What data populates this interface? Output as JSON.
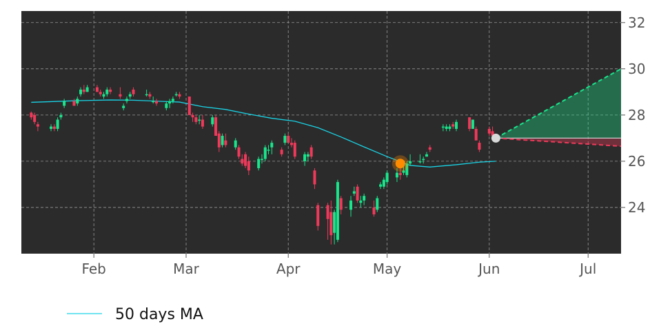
{
  "chart_data": {
    "type": "candlestick",
    "title": "",
    "xlabel": "",
    "ylabel": "",
    "ylim": [
      22.0,
      32.5
    ],
    "grid": true,
    "x_tick_labels": [
      "Feb",
      "Mar",
      "Apr",
      "May",
      "Jun",
      "Jul"
    ],
    "y_tick_labels": [
      "24",
      "26",
      "28",
      "30",
      "32"
    ],
    "legend": {
      "position": "bottom-left",
      "entries": [
        "50 days MA"
      ]
    },
    "colors": {
      "background": "#2b2b2b",
      "up": "#19e68c",
      "down": "#f0395a",
      "ma": "#19d4e6",
      "grid": "#9a9a9a",
      "marker": "#ff8c00",
      "projection_up": "#19e68c",
      "projection_down": "#f0395a",
      "current_point": "#d9d9d9"
    },
    "ohlc": [
      {
        "date": "Jan 13",
        "o": 28.1,
        "h": 28.15,
        "l": 27.8,
        "c": 27.9
      },
      {
        "date": "Jan 14",
        "o": 28.0,
        "h": 28.1,
        "l": 27.6,
        "c": 27.7
      },
      {
        "date": "Jan 15",
        "o": 27.6,
        "h": 27.7,
        "l": 27.3,
        "c": 27.5
      },
      {
        "date": "Jan 19",
        "o": 27.4,
        "h": 27.6,
        "l": 27.3,
        "c": 27.5
      },
      {
        "date": "Jan 20",
        "o": 27.5,
        "h": 27.6,
        "l": 27.3,
        "c": 27.4
      },
      {
        "date": "Jan 21",
        "o": 27.4,
        "h": 27.9,
        "l": 27.3,
        "c": 27.8
      },
      {
        "date": "Jan 22",
        "o": 27.9,
        "h": 28.1,
        "l": 27.8,
        "c": 28.0
      },
      {
        "date": "Jan 23",
        "o": 28.4,
        "h": 28.7,
        "l": 28.3,
        "c": 28.6
      },
      {
        "date": "Jan 26",
        "o": 28.6,
        "h": 28.7,
        "l": 28.4,
        "c": 28.4
      },
      {
        "date": "Jan 27",
        "o": 28.5,
        "h": 28.8,
        "l": 28.4,
        "c": 28.7
      },
      {
        "date": "Jan 28",
        "o": 28.9,
        "h": 29.2,
        "l": 28.8,
        "c": 29.1
      },
      {
        "date": "Jan 29",
        "o": 29.1,
        "h": 29.3,
        "l": 28.9,
        "c": 29.0
      },
      {
        "date": "Jan 30",
        "o": 29.0,
        "h": 29.3,
        "l": 29.0,
        "c": 29.2
      },
      {
        "date": "Feb 2",
        "o": 29.2,
        "h": 29.3,
        "l": 29.0,
        "c": 29.0
      },
      {
        "date": "Feb 3",
        "o": 29.0,
        "h": 29.1,
        "l": 28.8,
        "c": 28.9
      },
      {
        "date": "Feb 4",
        "o": 28.8,
        "h": 29.0,
        "l": 28.7,
        "c": 28.9
      },
      {
        "date": "Feb 5",
        "o": 28.9,
        "h": 29.2,
        "l": 28.8,
        "c": 29.1
      },
      {
        "date": "Feb 6",
        "o": 29.1,
        "h": 29.2,
        "l": 28.9,
        "c": 29.0
      },
      {
        "date": "Feb 9",
        "o": 28.9,
        "h": 29.2,
        "l": 28.7,
        "c": 28.8
      },
      {
        "date": "Feb 10",
        "o": 28.3,
        "h": 28.5,
        "l": 28.2,
        "c": 28.4
      },
      {
        "date": "Feb 11",
        "o": 28.6,
        "h": 28.8,
        "l": 28.5,
        "c": 28.7
      },
      {
        "date": "Feb 12",
        "o": 28.8,
        "h": 29.0,
        "l": 28.7,
        "c": 28.9
      },
      {
        "date": "Feb 13",
        "o": 29.1,
        "h": 29.2,
        "l": 28.8,
        "c": 28.9
      },
      {
        "date": "Feb 17",
        "o": 28.9,
        "h": 29.1,
        "l": 28.8,
        "c": 28.9
      },
      {
        "date": "Feb 18",
        "o": 28.9,
        "h": 29.0,
        "l": 28.7,
        "c": 28.8
      },
      {
        "date": "Feb 19",
        "o": 28.6,
        "h": 28.8,
        "l": 28.5,
        "c": 28.6
      },
      {
        "date": "Feb 20",
        "o": 28.6,
        "h": 28.7,
        "l": 28.4,
        "c": 28.5
      },
      {
        "date": "Feb 23",
        "o": 28.3,
        "h": 28.6,
        "l": 28.2,
        "c": 28.5
      },
      {
        "date": "Feb 24",
        "o": 28.5,
        "h": 28.7,
        "l": 28.3,
        "c": 28.6
      },
      {
        "date": "Feb 25",
        "o": 28.6,
        "h": 28.8,
        "l": 28.5,
        "c": 28.7
      },
      {
        "date": "Feb 26",
        "o": 28.9,
        "h": 29.0,
        "l": 28.8,
        "c": 28.9
      },
      {
        "date": "Feb 27",
        "o": 28.9,
        "h": 29.0,
        "l": 28.7,
        "c": 28.8
      },
      {
        "date": "Mar 2",
        "o": 28.8,
        "h": 28.8,
        "l": 28.0,
        "c": 28.0
      },
      {
        "date": "Mar 3",
        "o": 28.0,
        "h": 28.1,
        "l": 27.7,
        "c": 27.9
      },
      {
        "date": "Mar 4",
        "o": 27.9,
        "h": 28.0,
        "l": 27.6,
        "c": 27.7
      },
      {
        "date": "Mar 5",
        "o": 27.8,
        "h": 28.0,
        "l": 27.6,
        "c": 27.8
      },
      {
        "date": "Mar 6",
        "o": 27.8,
        "h": 28.0,
        "l": 27.4,
        "c": 27.5
      },
      {
        "date": "Mar 9",
        "o": 27.6,
        "h": 28.0,
        "l": 27.5,
        "c": 27.9
      },
      {
        "date": "Mar 10",
        "o": 27.9,
        "h": 28.0,
        "l": 27.1,
        "c": 27.1
      },
      {
        "date": "Mar 11",
        "o": 27.2,
        "h": 27.3,
        "l": 26.4,
        "c": 26.6
      },
      {
        "date": "Mar 12",
        "o": 26.7,
        "h": 27.2,
        "l": 26.6,
        "c": 27.1
      },
      {
        "date": "Mar 13",
        "o": 26.9,
        "h": 27.2,
        "l": 26.6,
        "c": 26.7
      },
      {
        "date": "Mar 16",
        "o": 26.6,
        "h": 27.0,
        "l": 26.5,
        "c": 26.9
      },
      {
        "date": "Mar 17",
        "o": 26.6,
        "h": 26.7,
        "l": 26.1,
        "c": 26.2
      },
      {
        "date": "Mar 18",
        "o": 26.1,
        "h": 26.3,
        "l": 25.8,
        "c": 25.9
      },
      {
        "date": "Mar 19",
        "o": 26.3,
        "h": 26.4,
        "l": 25.7,
        "c": 25.8
      },
      {
        "date": "Mar 20",
        "o": 26.0,
        "h": 26.2,
        "l": 25.4,
        "c": 25.6
      },
      {
        "date": "Mar 23",
        "o": 25.7,
        "h": 26.2,
        "l": 25.6,
        "c": 26.1
      },
      {
        "date": "Mar 24",
        "o": 26.1,
        "h": 26.3,
        "l": 25.9,
        "c": 26.1
      },
      {
        "date": "Mar 25",
        "o": 26.1,
        "h": 26.7,
        "l": 26.0,
        "c": 26.6
      },
      {
        "date": "Mar 26",
        "o": 26.5,
        "h": 26.7,
        "l": 26.3,
        "c": 26.5
      },
      {
        "date": "Mar 27",
        "o": 26.6,
        "h": 26.9,
        "l": 26.3,
        "c": 26.8
      },
      {
        "date": "Mar 30",
        "o": 26.5,
        "h": 26.6,
        "l": 26.2,
        "c": 26.3
      },
      {
        "date": "Mar 31",
        "o": 26.8,
        "h": 27.2,
        "l": 26.7,
        "c": 27.1
      },
      {
        "date": "Apr 1",
        "o": 27.1,
        "h": 27.2,
        "l": 26.8,
        "c": 26.8
      },
      {
        "date": "Apr 2",
        "o": 26.8,
        "h": 27.0,
        "l": 26.6,
        "c": 26.7
      },
      {
        "date": "Apr 3",
        "o": 26.8,
        "h": 26.9,
        "l": 26.1,
        "c": 26.2
      },
      {
        "date": "Apr 6",
        "o": 26.0,
        "h": 26.4,
        "l": 25.8,
        "c": 26.3
      },
      {
        "date": "Apr 7",
        "o": 26.2,
        "h": 26.4,
        "l": 26.0,
        "c": 26.3
      },
      {
        "date": "Apr 8",
        "o": 26.6,
        "h": 26.7,
        "l": 26.1,
        "c": 26.2
      },
      {
        "date": "Apr 9",
        "o": 25.6,
        "h": 25.7,
        "l": 24.8,
        "c": 25.0
      },
      {
        "date": "Apr 10",
        "o": 24.1,
        "h": 24.2,
        "l": 23.0,
        "c": 23.2
      },
      {
        "date": "Apr 13",
        "o": 24.1,
        "h": 24.2,
        "l": 22.6,
        "c": 23.5
      },
      {
        "date": "Apr 14",
        "o": 23.8,
        "h": 24.3,
        "l": 22.4,
        "c": 22.8
      },
      {
        "date": "Apr 15",
        "o": 22.9,
        "h": 23.9,
        "l": 22.4,
        "c": 23.8
      },
      {
        "date": "Apr 16",
        "o": 22.6,
        "h": 25.2,
        "l": 22.5,
        "c": 25.1
      },
      {
        "date": "Apr 17",
        "o": 24.4,
        "h": 24.5,
        "l": 23.7,
        "c": 23.9
      },
      {
        "date": "Apr 20",
        "o": 23.9,
        "h": 24.5,
        "l": 23.6,
        "c": 24.3
      },
      {
        "date": "Apr 21",
        "o": 24.6,
        "h": 24.9,
        "l": 24.5,
        "c": 24.7
      },
      {
        "date": "Apr 22",
        "o": 24.9,
        "h": 25.0,
        "l": 24.2,
        "c": 24.3
      },
      {
        "date": "Apr 23",
        "o": 24.2,
        "h": 24.5,
        "l": 24.0,
        "c": 24.3
      },
      {
        "date": "Apr 24",
        "o": 24.3,
        "h": 24.6,
        "l": 24.1,
        "c": 24.5
      },
      {
        "date": "Apr 27",
        "o": 24.0,
        "h": 24.3,
        "l": 23.6,
        "c": 23.7
      },
      {
        "date": "Apr 28",
        "o": 23.9,
        "h": 24.5,
        "l": 23.8,
        "c": 24.4
      },
      {
        "date": "Apr 29",
        "o": 24.9,
        "h": 25.1,
        "l": 24.8,
        "c": 25.0
      },
      {
        "date": "Apr 30",
        "o": 24.9,
        "h": 25.3,
        "l": 24.8,
        "c": 25.2
      },
      {
        "date": "May 1",
        "o": 25.1,
        "h": 25.6,
        "l": 25.0,
        "c": 25.5
      },
      {
        "date": "May 4",
        "o": 25.3,
        "h": 25.7,
        "l": 25.1,
        "c": 25.5
      },
      {
        "date": "May 5",
        "o": 25.5,
        "h": 25.7,
        "l": 25.2,
        "c": 25.4
      },
      {
        "date": "May 6",
        "o": 25.5,
        "h": 25.9,
        "l": 25.4,
        "c": 25.6
      },
      {
        "date": "May 7",
        "o": 25.4,
        "h": 26.0,
        "l": 25.3,
        "c": 25.9
      },
      {
        "date": "May 8",
        "o": 25.9,
        "h": 26.3,
        "l": 25.8,
        "c": 26.0
      },
      {
        "date": "May 11",
        "o": 26.0,
        "h": 26.3,
        "l": 25.9,
        "c": 26.0
      },
      {
        "date": "May 12",
        "o": 26.1,
        "h": 26.2,
        "l": 25.9,
        "c": 26.1
      },
      {
        "date": "May 13",
        "o": 26.2,
        "h": 26.4,
        "l": 26.2,
        "c": 26.3
      },
      {
        "date": "May 14",
        "o": 26.6,
        "h": 26.7,
        "l": 26.4,
        "c": 26.5
      },
      {
        "date": "May 18",
        "o": 27.5,
        "h": 27.6,
        "l": 27.3,
        "c": 27.5
      },
      {
        "date": "May 19",
        "o": 27.4,
        "h": 27.6,
        "l": 27.3,
        "c": 27.5
      },
      {
        "date": "May 20",
        "o": 27.4,
        "h": 27.6,
        "l": 27.3,
        "c": 27.5
      },
      {
        "date": "May 21",
        "o": 27.6,
        "h": 27.7,
        "l": 27.4,
        "c": 27.5
      },
      {
        "date": "May 22",
        "o": 27.4,
        "h": 27.8,
        "l": 27.3,
        "c": 27.7
      },
      {
        "date": "May 26",
        "o": 27.9,
        "h": 27.9,
        "l": 27.3,
        "c": 27.4
      },
      {
        "date": "May 27",
        "o": 27.4,
        "h": 27.8,
        "l": 27.4,
        "c": 27.8
      },
      {
        "date": "May 28",
        "o": 27.4,
        "h": 27.5,
        "l": 26.9,
        "c": 26.9
      },
      {
        "date": "May 29",
        "o": 26.8,
        "h": 26.9,
        "l": 26.4,
        "c": 26.5
      },
      {
        "date": "Jun 1",
        "o": 27.4,
        "h": 27.5,
        "l": 27.1,
        "c": 27.2
      },
      {
        "date": "Jun 2",
        "o": 27.3,
        "h": 27.5,
        "l": 27.0,
        "c": 27.1
      },
      {
        "date": "Jun 3",
        "o": 27.0,
        "h": 27.1,
        "l": 26.9,
        "c": 27.0
      }
    ],
    "ma50": [
      {
        "date": "Jan 13",
        "v": 28.55
      },
      {
        "date": "Jan 27",
        "v": 28.62
      },
      {
        "date": "Feb 6",
        "v": 28.65
      },
      {
        "date": "Feb 13",
        "v": 28.64
      },
      {
        "date": "Feb 20",
        "v": 28.6
      },
      {
        "date": "Feb 27",
        "v": 28.56
      },
      {
        "date": "Mar 6",
        "v": 28.36
      },
      {
        "date": "Mar 13",
        "v": 28.24
      },
      {
        "date": "Mar 20",
        "v": 28.04
      },
      {
        "date": "Mar 27",
        "v": 27.86
      },
      {
        "date": "Apr 3",
        "v": 27.73
      },
      {
        "date": "Apr 10",
        "v": 27.45
      },
      {
        "date": "Apr 17",
        "v": 27.05
      },
      {
        "date": "Apr 24",
        "v": 26.62
      },
      {
        "date": "May 1",
        "v": 26.2
      },
      {
        "date": "May 8",
        "v": 25.82
      },
      {
        "date": "May 14",
        "v": 25.75
      },
      {
        "date": "May 22",
        "v": 25.85
      },
      {
        "date": "May 29",
        "v": 25.96
      },
      {
        "date": "Jun 3",
        "v": 26.0
      }
    ],
    "signal_marker": {
      "date": "May 5",
      "v": 25.9
    },
    "current_point": {
      "date": "Jun 3",
      "v": 27.0
    },
    "projection": {
      "start": {
        "date": "Jun 3",
        "v": 27.0
      },
      "end_date": "Jul 6",
      "upper_end": 30.0,
      "lower_end": 26.65
    }
  }
}
